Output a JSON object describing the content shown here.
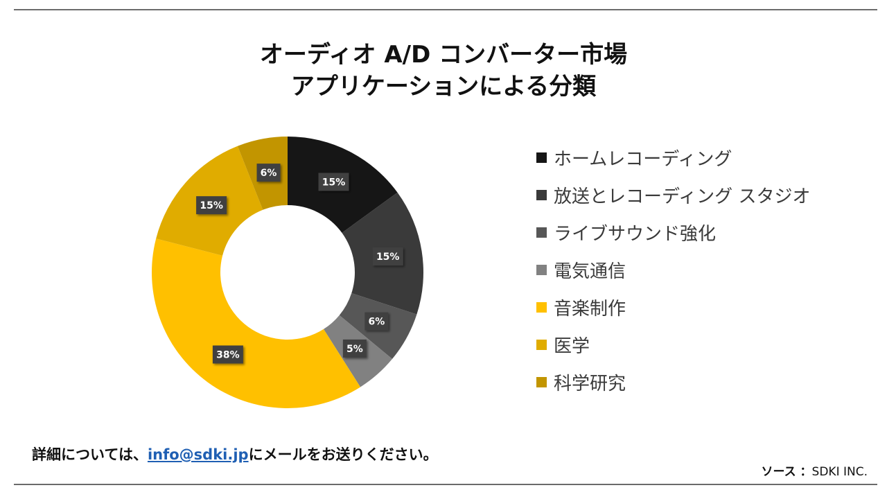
{
  "title": {
    "line1": "オーディオ A/D コンバーター市場",
    "line2": "アプリケーションによる分類"
  },
  "chart_data": {
    "type": "pie",
    "categories": [
      "ホームレコーディング",
      "放送とレコーディング スタジオ",
      "ライブサウンド強化",
      "電気通信",
      "音楽制作",
      "医学",
      "科学研究"
    ],
    "values": [
      15,
      15,
      6,
      5,
      38,
      15,
      6
    ],
    "labels": [
      "15%",
      "15%",
      "6%",
      "5%",
      "38%",
      "15%",
      "6%"
    ],
    "colors": [
      "#161616",
      "#3a3a3a",
      "#575757",
      "#818181",
      "#ffc000",
      "#e0ac00",
      "#c29500"
    ],
    "legend_position": "right"
  },
  "footer": {
    "contact_prefix": "詳細については、",
    "contact_email": "info@sdki.jp",
    "contact_suffix": "にメールをお送りください。",
    "source_label": "ソース ：",
    "source_value": "SDKI INC."
  }
}
